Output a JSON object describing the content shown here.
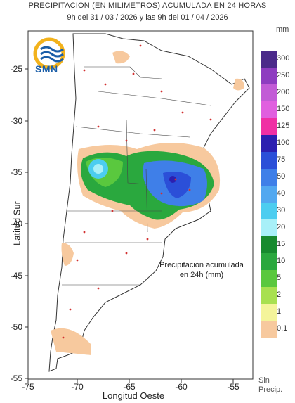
{
  "header": {
    "line1": "PRECIPITACION (EN MILIMETROS) ACUMULADA EN 24 HORAS",
    "line2": "9h del 31 / 03 / 2026  y las 9h del 01 / 04 / 2026"
  },
  "logo": {
    "text": "SMN",
    "icon": "smn-logo-icon"
  },
  "axes": {
    "ylabel": "Latitud Sur",
    "xlabel": "Longitud Oeste",
    "xticks": [
      "-75",
      "-70",
      "-65",
      "-60",
      "-55"
    ],
    "yticks": [
      "-25",
      "-30",
      "-35",
      "-40",
      "-45",
      "-50",
      "-55"
    ]
  },
  "annotation": {
    "line1": "Precipitación acumulada",
    "line2": "en 24h (mm)"
  },
  "legend": {
    "unit": "mm",
    "items": [
      {
        "label": "300",
        "color": "#4b2a8a"
      },
      {
        "label": "250",
        "color": "#8e3cc0"
      },
      {
        "label": "200",
        "color": "#c25bd6"
      },
      {
        "label": "150",
        "color": "#e05fdf"
      },
      {
        "label": "125",
        "color": "#f02fa4"
      },
      {
        "label": "100",
        "color": "#2c1fb0"
      },
      {
        "label": "75",
        "color": "#2b4fd8"
      },
      {
        "label": "50",
        "color": "#3f7fe8"
      },
      {
        "label": "40",
        "color": "#52a8f0"
      },
      {
        "label": "30",
        "color": "#4ccdf0"
      },
      {
        "label": "20",
        "color": "#a8f0f8"
      },
      {
        "label": "15",
        "color": "#178a2e"
      },
      {
        "label": "10",
        "color": "#2aa83e"
      },
      {
        "label": "5",
        "color": "#5ac83e"
      },
      {
        "label": "2",
        "color": "#a8e050"
      },
      {
        "label": "1",
        "color": "#f4f49a"
      },
      {
        "label": "0.1",
        "color": "#f7c99e"
      }
    ],
    "no_precip_line1": "Sin",
    "no_precip_line2": "Precip."
  }
}
